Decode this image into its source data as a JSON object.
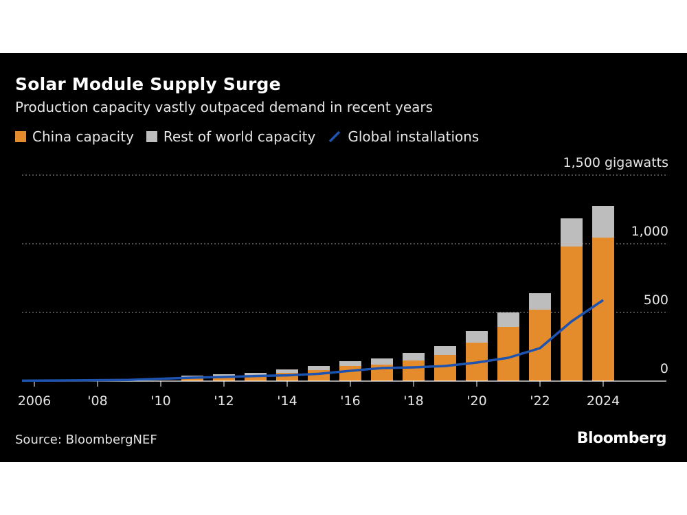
{
  "header": {
    "title": "Solar Module Supply Surge",
    "subtitle": "Production capacity vastly outpaced demand in recent years"
  },
  "colors": {
    "background": "#000000",
    "china": "#e48c2b",
    "rest_of_world": "#bdbdbd",
    "installations": "#1e54b0",
    "text": "#e6e6e6",
    "grid": "#9a9a9a"
  },
  "legend": {
    "china": "China capacity",
    "rest": "Rest of world capacity",
    "installations": "Global installations"
  },
  "footer": {
    "source": "Source: BloombergNEF",
    "brand": "Bloomberg"
  },
  "chart_data": {
    "type": "bar",
    "stacked": true,
    "title": "Solar Module Supply Surge",
    "subtitle": "Production capacity vastly outpaced demand in recent years",
    "xlabel": "",
    "ylabel": "gigawatts",
    "categories": [
      2006,
      2007,
      2008,
      2009,
      2010,
      2011,
      2012,
      2013,
      2014,
      2015,
      2016,
      2017,
      2018,
      2019,
      2020,
      2021,
      2022,
      2023,
      2024
    ],
    "x_tick_labels": [
      {
        "year": 2006,
        "label": "2006"
      },
      {
        "year": 2008,
        "label": "'08"
      },
      {
        "year": 2010,
        "label": "'10"
      },
      {
        "year": 2012,
        "label": "'12"
      },
      {
        "year": 2014,
        "label": "'14"
      },
      {
        "year": 2016,
        "label": "'16"
      },
      {
        "year": 2018,
        "label": "'18"
      },
      {
        "year": 2020,
        "label": "'20"
      },
      {
        "year": 2022,
        "label": "'22"
      },
      {
        "year": 2024,
        "label": "2024"
      }
    ],
    "y_ticks": [
      {
        "value": 0,
        "label": "0"
      },
      {
        "value": 500,
        "label": "500"
      },
      {
        "value": 1000,
        "label": "1,000"
      },
      {
        "value": 1500,
        "label": "1,500 gigawatts"
      }
    ],
    "ylim": [
      0,
      1500
    ],
    "grid": true,
    "series": [
      {
        "name": "China capacity",
        "kind": "bar",
        "values": [
          0,
          0,
          0,
          0,
          0,
          30,
          35,
          40,
          60,
          80,
          110,
          120,
          150,
          190,
          280,
          395,
          520,
          980,
          1045
        ]
      },
      {
        "name": "Rest of world capacity",
        "kind": "bar",
        "values": [
          0,
          0,
          0,
          0,
          0,
          10,
          15,
          20,
          25,
          30,
          35,
          45,
          55,
          65,
          85,
          105,
          120,
          205,
          230
        ]
      },
      {
        "name": "Global installations",
        "kind": "line",
        "values": [
          3,
          5,
          7,
          9,
          17,
          25,
          30,
          37,
          42,
          53,
          75,
          95,
          100,
          110,
          135,
          170,
          240,
          435,
          590
        ]
      }
    ]
  }
}
